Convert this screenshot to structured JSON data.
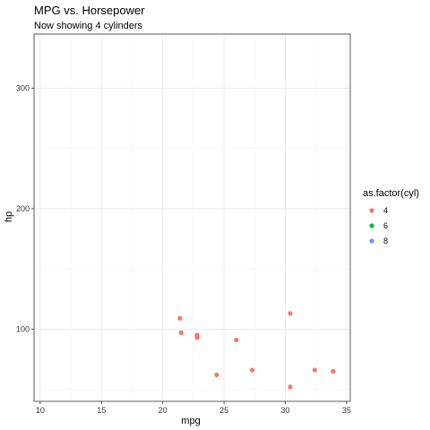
{
  "chart_data": {
    "type": "scatter",
    "title": "MPG vs. Horsepower",
    "subtitle": "Now showing 4 cylinders",
    "xlabel": "mpg",
    "ylabel": "hp",
    "xlim": [
      9.5,
      35.3
    ],
    "ylim": [
      40,
      345
    ],
    "xticks": [
      10,
      15,
      20,
      25,
      30,
      35
    ],
    "yticks": [
      100,
      200,
      300
    ],
    "xtick_labels": [
      "10",
      "15",
      "20",
      "25",
      "30",
      "35"
    ],
    "ytick_labels": [
      "100",
      "200",
      "300"
    ],
    "grid": true,
    "legend": {
      "title": "as.factor(cyl)",
      "placement": "right",
      "entries": [
        {
          "label": "4",
          "color": "#F8766D"
        },
        {
          "label": "6",
          "color": "#00BA38"
        },
        {
          "label": "8",
          "color": "#619CFF"
        }
      ]
    },
    "series": [
      {
        "name": "4",
        "color": "#F8766D",
        "points": [
          {
            "x": 21.4,
            "y": 109
          },
          {
            "x": 21.5,
            "y": 97
          },
          {
            "x": 22.8,
            "y": 95
          },
          {
            "x": 22.8,
            "y": 93
          },
          {
            "x": 24.4,
            "y": 62
          },
          {
            "x": 26.0,
            "y": 91
          },
          {
            "x": 27.3,
            "y": 66
          },
          {
            "x": 30.4,
            "y": 113
          },
          {
            "x": 30.4,
            "y": 52
          },
          {
            "x": 32.4,
            "y": 66
          },
          {
            "x": 33.9,
            "y": 65
          }
        ]
      }
    ]
  }
}
